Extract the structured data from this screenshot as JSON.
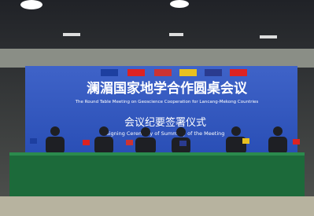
{
  "banner": {
    "title": "澜湄国家地学合作圆桌会议",
    "subtitle": "The Round Table Meeting on Geoscience Cooperation for Lancang-Mekong Countries",
    "ceremony_title": "会议纪要签署仪式",
    "ceremony_subtitle": "Signing Ceremony of Summary of the Meeting"
  }
}
